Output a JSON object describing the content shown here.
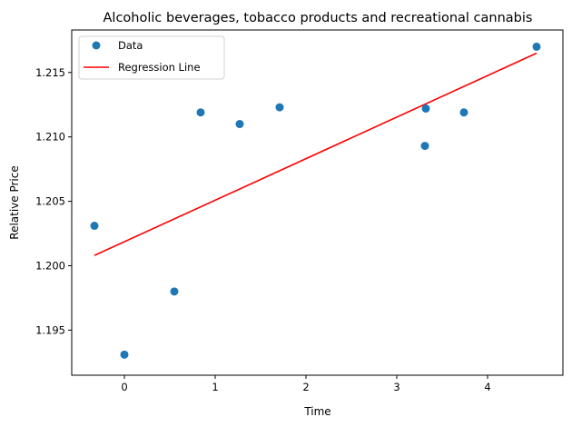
{
  "chart_data": {
    "type": "scatter",
    "title": "Alcoholic beverages, tobacco products and recreational cannabis",
    "xlabel": "Time",
    "ylabel": "Relative Price",
    "xlim": [
      -0.58,
      4.83
    ],
    "ylim": [
      1.1915,
      1.2183
    ],
    "xticks": [
      "0",
      "1",
      "2",
      "3",
      "4"
    ],
    "xtick_values": [
      0,
      1,
      2,
      3,
      4
    ],
    "yticks": [
      "1.195",
      "1.200",
      "1.205",
      "1.210",
      "1.215"
    ],
    "ytick_values": [
      1.195,
      1.2,
      1.205,
      1.21,
      1.215
    ],
    "grid": false,
    "legend_position": "top-left",
    "series": [
      {
        "name": "Data",
        "kind": "scatter",
        "color": "#1f77b4",
        "x": [
          -0.33,
          0.0,
          0.55,
          0.84,
          1.27,
          1.71,
          3.31,
          3.32,
          3.74,
          4.54
        ],
        "y": [
          1.2031,
          1.1931,
          1.198,
          1.2119,
          1.211,
          1.2123,
          1.2093,
          1.2122,
          1.2119,
          1.217
        ]
      },
      {
        "name": "Regression Line",
        "kind": "line",
        "color": "#ff0000",
        "x": [
          -0.33,
          4.54
        ],
        "y": [
          1.2008,
          1.2165
        ]
      }
    ]
  }
}
